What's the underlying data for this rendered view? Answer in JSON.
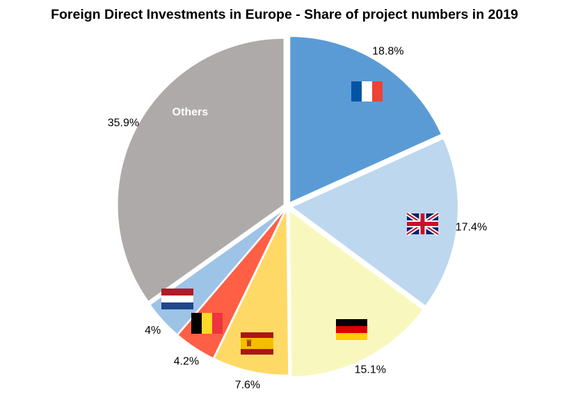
{
  "chart_data": {
    "type": "pie",
    "title": "Foreign Direct Investments in Europe - Share of project numbers in 2019",
    "slices": [
      {
        "label": "18.8%",
        "value": 18.8,
        "color": "#5B9BD5",
        "icon": "france-flag-icon"
      },
      {
        "label": "17.4%",
        "value": 17.4,
        "color": "#BDD7EE",
        "icon": "uk-flag-icon"
      },
      {
        "label": "15.1%",
        "value": 15.1,
        "color": "#F8F8BE",
        "icon": "germany-flag-icon"
      },
      {
        "label": "7.6%",
        "value": 7.6,
        "color": "#FFD966",
        "icon": "spain-flag-icon"
      },
      {
        "label": "4.2%",
        "value": 4.2,
        "color": "#FF5F45",
        "icon": "belgium-flag-icon"
      },
      {
        "label": "4%",
        "value": 4.0,
        "color": "#9DC3E6",
        "icon": "netherlands-flag-icon"
      },
      {
        "label": "35.9%",
        "value": 35.9,
        "color": "#AEAAAA",
        "inside_label": "Others"
      }
    ],
    "legend": "none"
  }
}
